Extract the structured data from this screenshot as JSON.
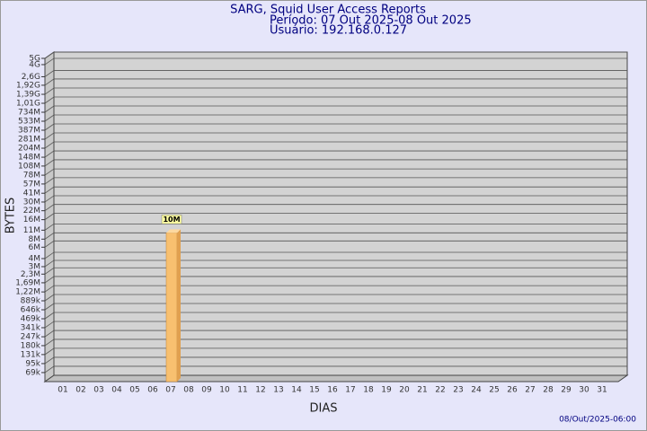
{
  "chart_data": {
    "type": "bar",
    "title": "SARG, Squid User Access Reports",
    "subtitles": [
      "Período: 07 Out 2025-08 Out 2025",
      "Usuário: 192.168.0.127"
    ],
    "x_label": "DIAS",
    "y_label": "BYTES",
    "footer": "08/Out/2025-06:00",
    "categories": [
      "01",
      "02",
      "03",
      "04",
      "05",
      "06",
      "07",
      "08",
      "09",
      "10",
      "11",
      "12",
      "13",
      "14",
      "15",
      "16",
      "17",
      "18",
      "19",
      "20",
      "21",
      "22",
      "23",
      "24",
      "25",
      "26",
      "27",
      "28",
      "29",
      "30",
      "31"
    ],
    "values": [
      null,
      null,
      null,
      null,
      null,
      null,
      10000000,
      null,
      null,
      null,
      null,
      null,
      null,
      null,
      null,
      null,
      null,
      null,
      null,
      null,
      null,
      null,
      null,
      null,
      null,
      null,
      null,
      null,
      null,
      null,
      null
    ],
    "value_labels": [
      null,
      null,
      null,
      null,
      null,
      null,
      "10M",
      null,
      null,
      null,
      null,
      null,
      null,
      null,
      null,
      null,
      null,
      null,
      null,
      null,
      null,
      null,
      null,
      null,
      null,
      null,
      null,
      null,
      null,
      null,
      null
    ],
    "color": "#f8c070",
    "log_scale": true,
    "grid": true,
    "ylim": [
      50000,
      5000000000
    ],
    "yticks": [
      {
        "value": 69000,
        "label": "69k"
      },
      {
        "value": 95000,
        "label": "95k"
      },
      {
        "value": 131000,
        "label": "131k"
      },
      {
        "value": 180000,
        "label": "180k"
      },
      {
        "value": 247000,
        "label": "247k"
      },
      {
        "value": 341000,
        "label": "341k"
      },
      {
        "value": 469000,
        "label": "469k"
      },
      {
        "value": 646000,
        "label": "646k"
      },
      {
        "value": 889000,
        "label": "889k"
      },
      {
        "value": 1220000,
        "label": "1,22M"
      },
      {
        "value": 1690000,
        "label": "1,69M"
      },
      {
        "value": 2300000,
        "label": "2,3M"
      },
      {
        "value": 3000000,
        "label": "3M"
      },
      {
        "value": 4000000,
        "label": "4M"
      },
      {
        "value": 6000000,
        "label": "6M"
      },
      {
        "value": 8000000,
        "label": "8M"
      },
      {
        "value": 11000000,
        "label": "11M"
      },
      {
        "value": 16000000,
        "label": "16M"
      },
      {
        "value": 22000000,
        "label": "22M"
      },
      {
        "value": 30000000,
        "label": "30M"
      },
      {
        "value": 41000000,
        "label": "41M"
      },
      {
        "value": 57000000,
        "label": "57M"
      },
      {
        "value": 78000000,
        "label": "78M"
      },
      {
        "value": 108000000,
        "label": "108M"
      },
      {
        "value": 148000000,
        "label": "148M"
      },
      {
        "value": 204000000,
        "label": "204M"
      },
      {
        "value": 281000000,
        "label": "281M"
      },
      {
        "value": 387000000,
        "label": "387M"
      },
      {
        "value": 533000000,
        "label": "533M"
      },
      {
        "value": 734000000,
        "label": "734M"
      },
      {
        "value": 1010000000,
        "label": "1,01G"
      },
      {
        "value": 1390000000,
        "label": "1,39G"
      },
      {
        "value": 1920000000,
        "label": "1,92G"
      },
      {
        "value": 2600000000,
        "label": "2,6G"
      },
      {
        "value": 4000000000,
        "label": "4G"
      },
      {
        "value": 5000000000,
        "label": "5G"
      }
    ]
  }
}
